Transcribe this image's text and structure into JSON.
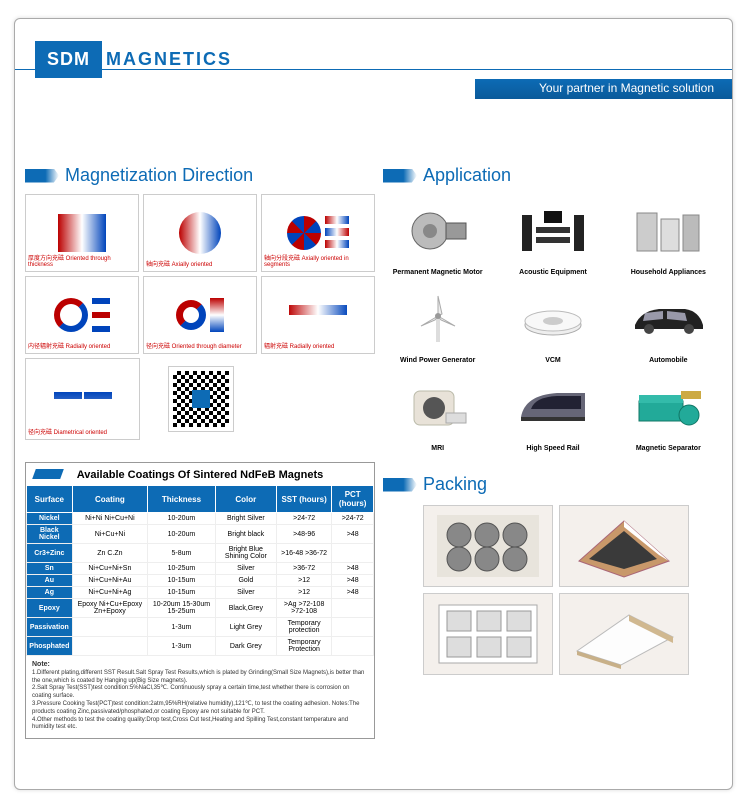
{
  "logo": {
    "badge": "SDM",
    "text": "MAGNETICS"
  },
  "tagline": "Your partner in Magnetic solution",
  "sections": {
    "magnetization": "Magnetization Direction",
    "application": "Application",
    "packing": "Packing"
  },
  "magnetization_cells": [
    {
      "caption": "厚度方向充磁\nOriented through thickness"
    },
    {
      "caption": "轴向充磁\nAxially oriented"
    },
    {
      "caption": "轴向分段充磁\nAxially oriented in segments"
    },
    {
      "caption": "内径辐射充磁\nRadially oriented"
    },
    {
      "caption": "径向充磁\nOriented through diameter"
    },
    {
      "caption": "辐射充磁\nRadially oriented"
    },
    {
      "caption": "径向充磁\nDiametrical oriented"
    }
  ],
  "applications": [
    {
      "label": "Permanent Magnetic Motor"
    },
    {
      "label": "Acoustic Equipment"
    },
    {
      "label": "Household Appliances"
    },
    {
      "label": "Wind Power Generator"
    },
    {
      "label": "VCM"
    },
    {
      "label": "Automobile"
    },
    {
      "label": "MRI"
    },
    {
      "label": "High Speed Rail"
    },
    {
      "label": "Magnetic Separator"
    }
  ],
  "coatings": {
    "title": "Available Coatings Of Sintered NdFeB Magnets",
    "headers": [
      "Surface",
      "Coating",
      "Thickness",
      "Color",
      "SST (hours)",
      "PCT (hours)"
    ],
    "rows": [
      [
        "Nickel",
        "Ni+Ni\nNi+Cu+Ni",
        "10-20um",
        "Bright Silver",
        ">24-72",
        ">24-72"
      ],
      [
        "Black Nickel",
        "Ni+Cu+Ni",
        "10-20um",
        "Bright black",
        ">48-96",
        ">48"
      ],
      [
        "Cr3+Zinc",
        "Zn\nC.Zn",
        "5-8um",
        "Bright Blue\nShining Color",
        ">16-48\n>36-72",
        ""
      ],
      [
        "Sn",
        "Ni+Cu+Ni+Sn",
        "10-25um",
        "Silver",
        ">36-72",
        ">48"
      ],
      [
        "Au",
        "Ni+Cu+Ni+Au",
        "10-15um",
        "Gold",
        ">12",
        ">48"
      ],
      [
        "Ag",
        "Ni+Cu+Ni+Ag",
        "10-15um",
        "Silver",
        ">12",
        ">48"
      ],
      [
        "Epoxy",
        "Epoxy\nNi+Cu+Epoxy\nZn+Epoxy",
        "10-20um\n15-30um\n15-25um",
        "Black,Grey",
        ">Ag\n>72-108\n>72-108",
        ""
      ],
      [
        "Passivation",
        "",
        "1-3um",
        "Light Grey",
        "Temporary protection",
        ""
      ],
      [
        "Phosphated",
        "",
        "1-3um",
        "Dark Grey",
        "Temporary Protection",
        ""
      ]
    ],
    "note_title": "Note:",
    "notes": [
      "1.Different plating,different SST Result.Salt Spray Test Results,which is plated by Grinding(Small Size Magnets),is better than the one,which is coated by Hanging up(Big Size magnets).",
      "2.Salt Spray Test(SST)test condition:5%NaCl,35℃. Continuously spray a certain time,test whether there is corrosion on coating surface.",
      "3.Pressure Cooking Test(PCT)test condition:2atm,95%RH(relative humidity),121℃, to test the coating adhesion. Notes:The products coating Zinc,passivated/phosphated,or coating Epoxy are not suitable for PCT.",
      "4.Other methods to test the coating quality:Drop test,Cross Cut test,Heating and Spilling Test,constant temperature and humidity test etc."
    ]
  },
  "colors": {
    "brand": "#0d6bb5",
    "red": "#b00020",
    "blue": "#0044bb"
  }
}
